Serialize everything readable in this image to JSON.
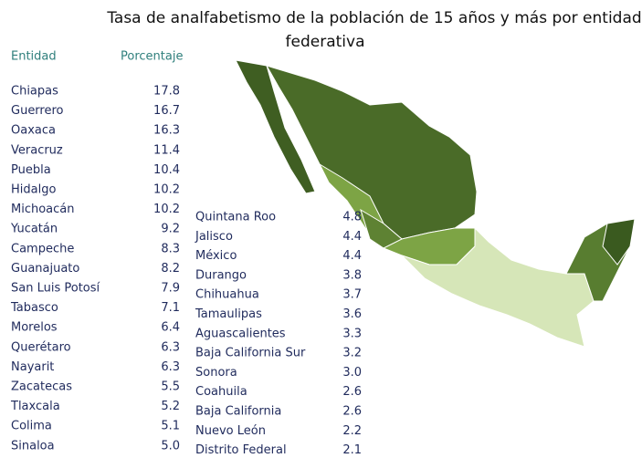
{
  "title": [
    "Tasa de analfabetismo de la población de 15 años y más por entidad",
    "federativa"
  ],
  "table": {
    "headers": [
      "Entidad",
      "Porcentaje"
    ],
    "rows": [
      [
        "Chiapas",
        "17.8"
      ],
      [
        "Guerrero",
        "16.7"
      ],
      [
        "Oaxaca",
        "16.3"
      ],
      [
        "Veracruz",
        "11.4"
      ],
      [
        "Puebla",
        "10.4"
      ],
      [
        "Hidalgo",
        "10.2"
      ],
      [
        "Michoacán",
        "10.2"
      ],
      [
        "Yucatán",
        "9.2"
      ],
      [
        "Campeche",
        "8.3"
      ],
      [
        "Guanajuato",
        "8.2"
      ],
      [
        "San Luis Potosí",
        "7.9"
      ],
      [
        "Tabasco",
        "7.1"
      ],
      [
        "Morelos",
        "6.4"
      ],
      [
        "Querétaro",
        "6.3"
      ],
      [
        "Nayarit",
        "6.3"
      ],
      [
        "Zacatecas",
        "5.5"
      ],
      [
        "Tlaxcala",
        "5.2"
      ],
      [
        "Colima",
        "5.1"
      ],
      [
        "Sinaloa",
        "5.0"
      ]
    ],
    "rows_2": [
      [
        "Quintana Roo",
        "4.8"
      ],
      [
        "Jalisco",
        "4.4"
      ],
      [
        "México",
        "4.4"
      ],
      [
        "Durango",
        "3.8"
      ],
      [
        "Chihuahua",
        "3.7"
      ],
      [
        "Tamaulipas",
        "3.6"
      ],
      [
        "Aguascalientes",
        "3.3"
      ],
      [
        "Baja California Sur",
        "3.2"
      ],
      [
        "Sonora",
        "3.0"
      ],
      [
        "Coahuila",
        "2.6"
      ],
      [
        "Baja California",
        "2.6"
      ],
      [
        "Nuevo León",
        "2.2"
      ],
      [
        "Distrito Federal",
        "2.1"
      ]
    ]
  }
}
